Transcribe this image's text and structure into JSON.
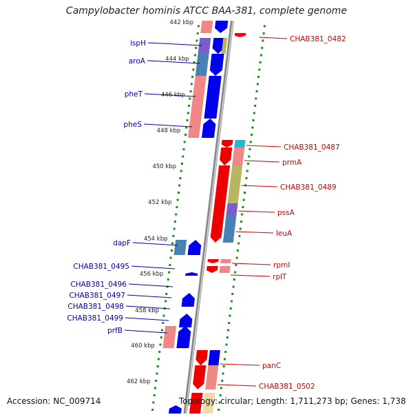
{
  "title": "Campylobacter hominis ATCC BAA-381, complete genome",
  "footer": {
    "accession": "Accession: NC_009714",
    "summary": "Topology: circular; Length: 1,711,273 bp; Genes: 1,738"
  },
  "colors": {
    "forward_gene": "#0000ee",
    "reverse_gene": "#ee0000",
    "cds_pink": "#f08888",
    "cds_steel": "#4682b4",
    "cds_olive": "#b8b460",
    "cds_purple": "#7a5ccc",
    "cds_green": "#7a9a40",
    "cds_cyan": "#22b8d8",
    "dot_track": "#1a8a1a",
    "backbone": "#888888",
    "left_label": "#0000aa",
    "right_label": "#cc0000"
  },
  "scale_ticks": [
    "442 kbp",
    "444 kbp",
    "446 kbp",
    "448 kbp",
    "450 kbp",
    "452 kbp",
    "454 kbp",
    "456 kbp",
    "458 kbp",
    "460 kbp",
    "462 kbp"
  ],
  "left_labels": [
    "ispH",
    "aroA",
    "pheT",
    "pheS",
    "dapF",
    "CHAB381_0495",
    "CHAB381_0496",
    "CHAB381_0497",
    "CHAB381_0498",
    "CHAB381_0499",
    "prfB"
  ],
  "right_labels": [
    "CHAB381_0482",
    "CHAB381_0487",
    "prmA",
    "CHAB381_0489",
    "pssA",
    "leuA",
    "rpmI",
    "rplT",
    "panC",
    "CHAB381_0502"
  ]
}
